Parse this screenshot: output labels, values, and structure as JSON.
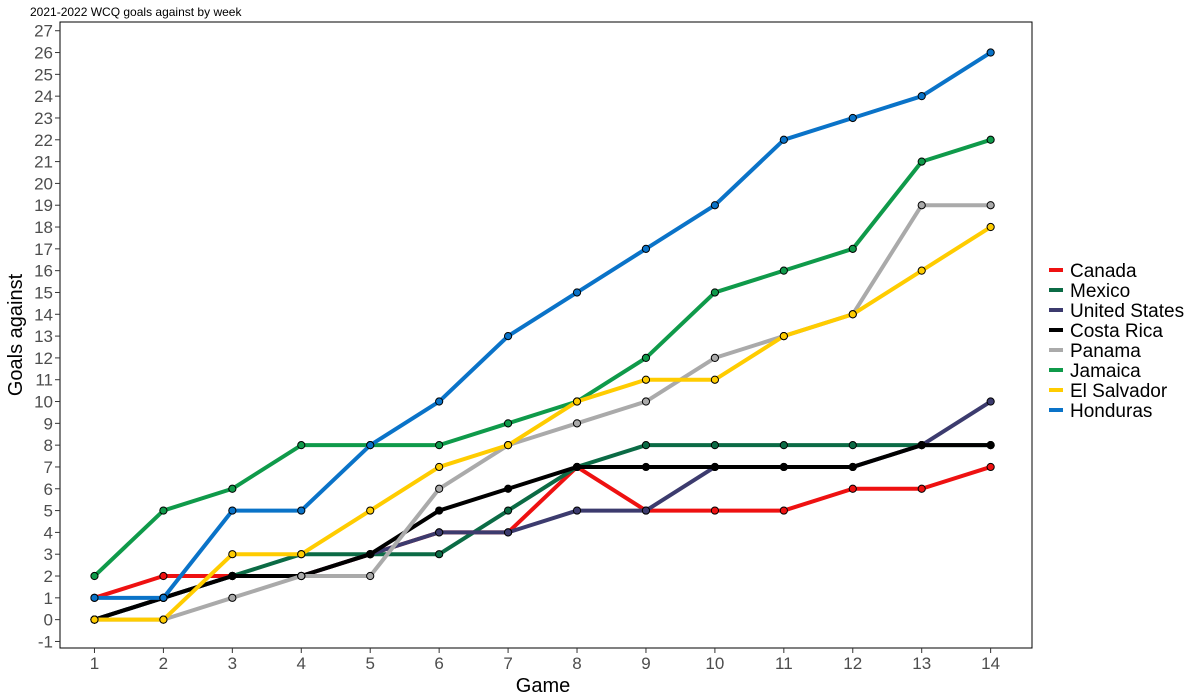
{
  "chart_data": {
    "type": "line",
    "title": "2021-2022 WCQ goals against by week",
    "xlabel": "Game",
    "ylabel": "Goals against",
    "x": [
      1,
      2,
      3,
      4,
      5,
      6,
      7,
      8,
      9,
      10,
      11,
      12,
      13,
      14
    ],
    "xlim": [
      0.5,
      14.6
    ],
    "ylim": [
      -1.3,
      27.4
    ],
    "yticks": [
      -1,
      0,
      1,
      2,
      3,
      4,
      5,
      6,
      7,
      8,
      9,
      10,
      11,
      12,
      13,
      14,
      15,
      16,
      17,
      18,
      19,
      20,
      21,
      22,
      23,
      24,
      25,
      26,
      27
    ],
    "grid": false,
    "legend_position": "right",
    "series": [
      {
        "name": "Canada",
        "color": "#ee1111",
        "values": [
          1,
          2,
          2,
          2,
          3,
          4,
          4,
          7,
          5,
          5,
          5,
          6,
          6,
          7
        ]
      },
      {
        "name": "Mexico",
        "color": "#0b6b45",
        "values": [
          0,
          1,
          2,
          3,
          3,
          3,
          5,
          7,
          8,
          8,
          8,
          8,
          8,
          8
        ]
      },
      {
        "name": "United States",
        "color": "#3c3b6e",
        "values": [
          0,
          1,
          2,
          2,
          3,
          4,
          4,
          5,
          5,
          7,
          7,
          7,
          8,
          10
        ]
      },
      {
        "name": "Costa Rica",
        "color": "#000000",
        "values": [
          0,
          1,
          2,
          2,
          3,
          5,
          6,
          7,
          7,
          7,
          7,
          7,
          8,
          8
        ]
      },
      {
        "name": "Panama",
        "color": "#aaaaaa",
        "values": [
          0,
          0,
          1,
          2,
          2,
          6,
          8,
          9,
          10,
          12,
          13,
          14,
          19,
          19
        ]
      },
      {
        "name": "Jamaica",
        "color": "#0f9a4a",
        "values": [
          2,
          5,
          6,
          8,
          8,
          8,
          9,
          10,
          12,
          15,
          16,
          17,
          21,
          22
        ]
      },
      {
        "name": "El Salvador",
        "color": "#ffcc00",
        "values": [
          0,
          0,
          3,
          3,
          5,
          7,
          8,
          10,
          11,
          11,
          13,
          14,
          16,
          18
        ]
      },
      {
        "name": "Honduras",
        "color": "#0a73c8",
        "values": [
          1,
          1,
          5,
          5,
          8,
          10,
          13,
          15,
          17,
          19,
          22,
          23,
          24,
          26
        ]
      }
    ]
  }
}
